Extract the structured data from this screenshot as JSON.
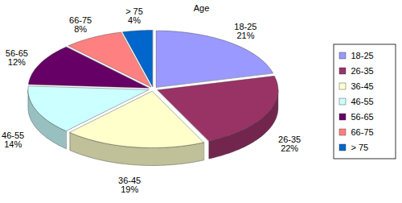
{
  "chart_data": {
    "type": "pie",
    "title": "Age",
    "categories": [
      "18-25",
      "26-35",
      "36-45",
      "46-55",
      "56-65",
      "66-75",
      "> 75"
    ],
    "values": [
      21,
      22,
      19,
      14,
      12,
      8,
      4
    ],
    "value_labels": [
      "21%",
      "22%",
      "19%",
      "14%",
      "12%",
      "8%",
      "4%"
    ],
    "colors": [
      "#9999ff",
      "#993366",
      "#ffffcc",
      "#ccffff",
      "#660066",
      "#ff8080",
      "#0066cc"
    ],
    "data_labels": true,
    "legend": "right"
  }
}
